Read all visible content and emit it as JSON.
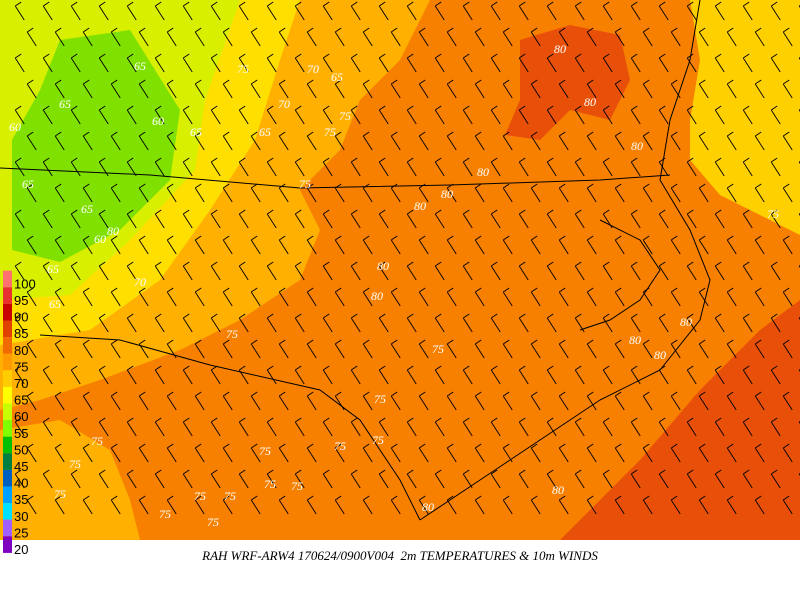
{
  "caption": "RAH WRF-ARW4 170624/0900V004  2m TEMPERATURES & 10m WINDS",
  "legend": {
    "labels": [
      100,
      95,
      90,
      85,
      80,
      75,
      70,
      65,
      60,
      55,
      50,
      45,
      40,
      35,
      30,
      25,
      20
    ]
  },
  "contour_labels": [
    80,
    80,
    65,
    65,
    70,
    65,
    75,
    60,
    65,
    65,
    70,
    75,
    75,
    80,
    80,
    80,
    80,
    65,
    75,
    65,
    60,
    80,
    80,
    65,
    70,
    80,
    65,
    75,
    80,
    80,
    80,
    75,
    75,
    75,
    75,
    75,
    75,
    75,
    75,
    75,
    75,
    75,
    75,
    80,
    80,
    75,
    75,
    75,
    60
  ]
}
